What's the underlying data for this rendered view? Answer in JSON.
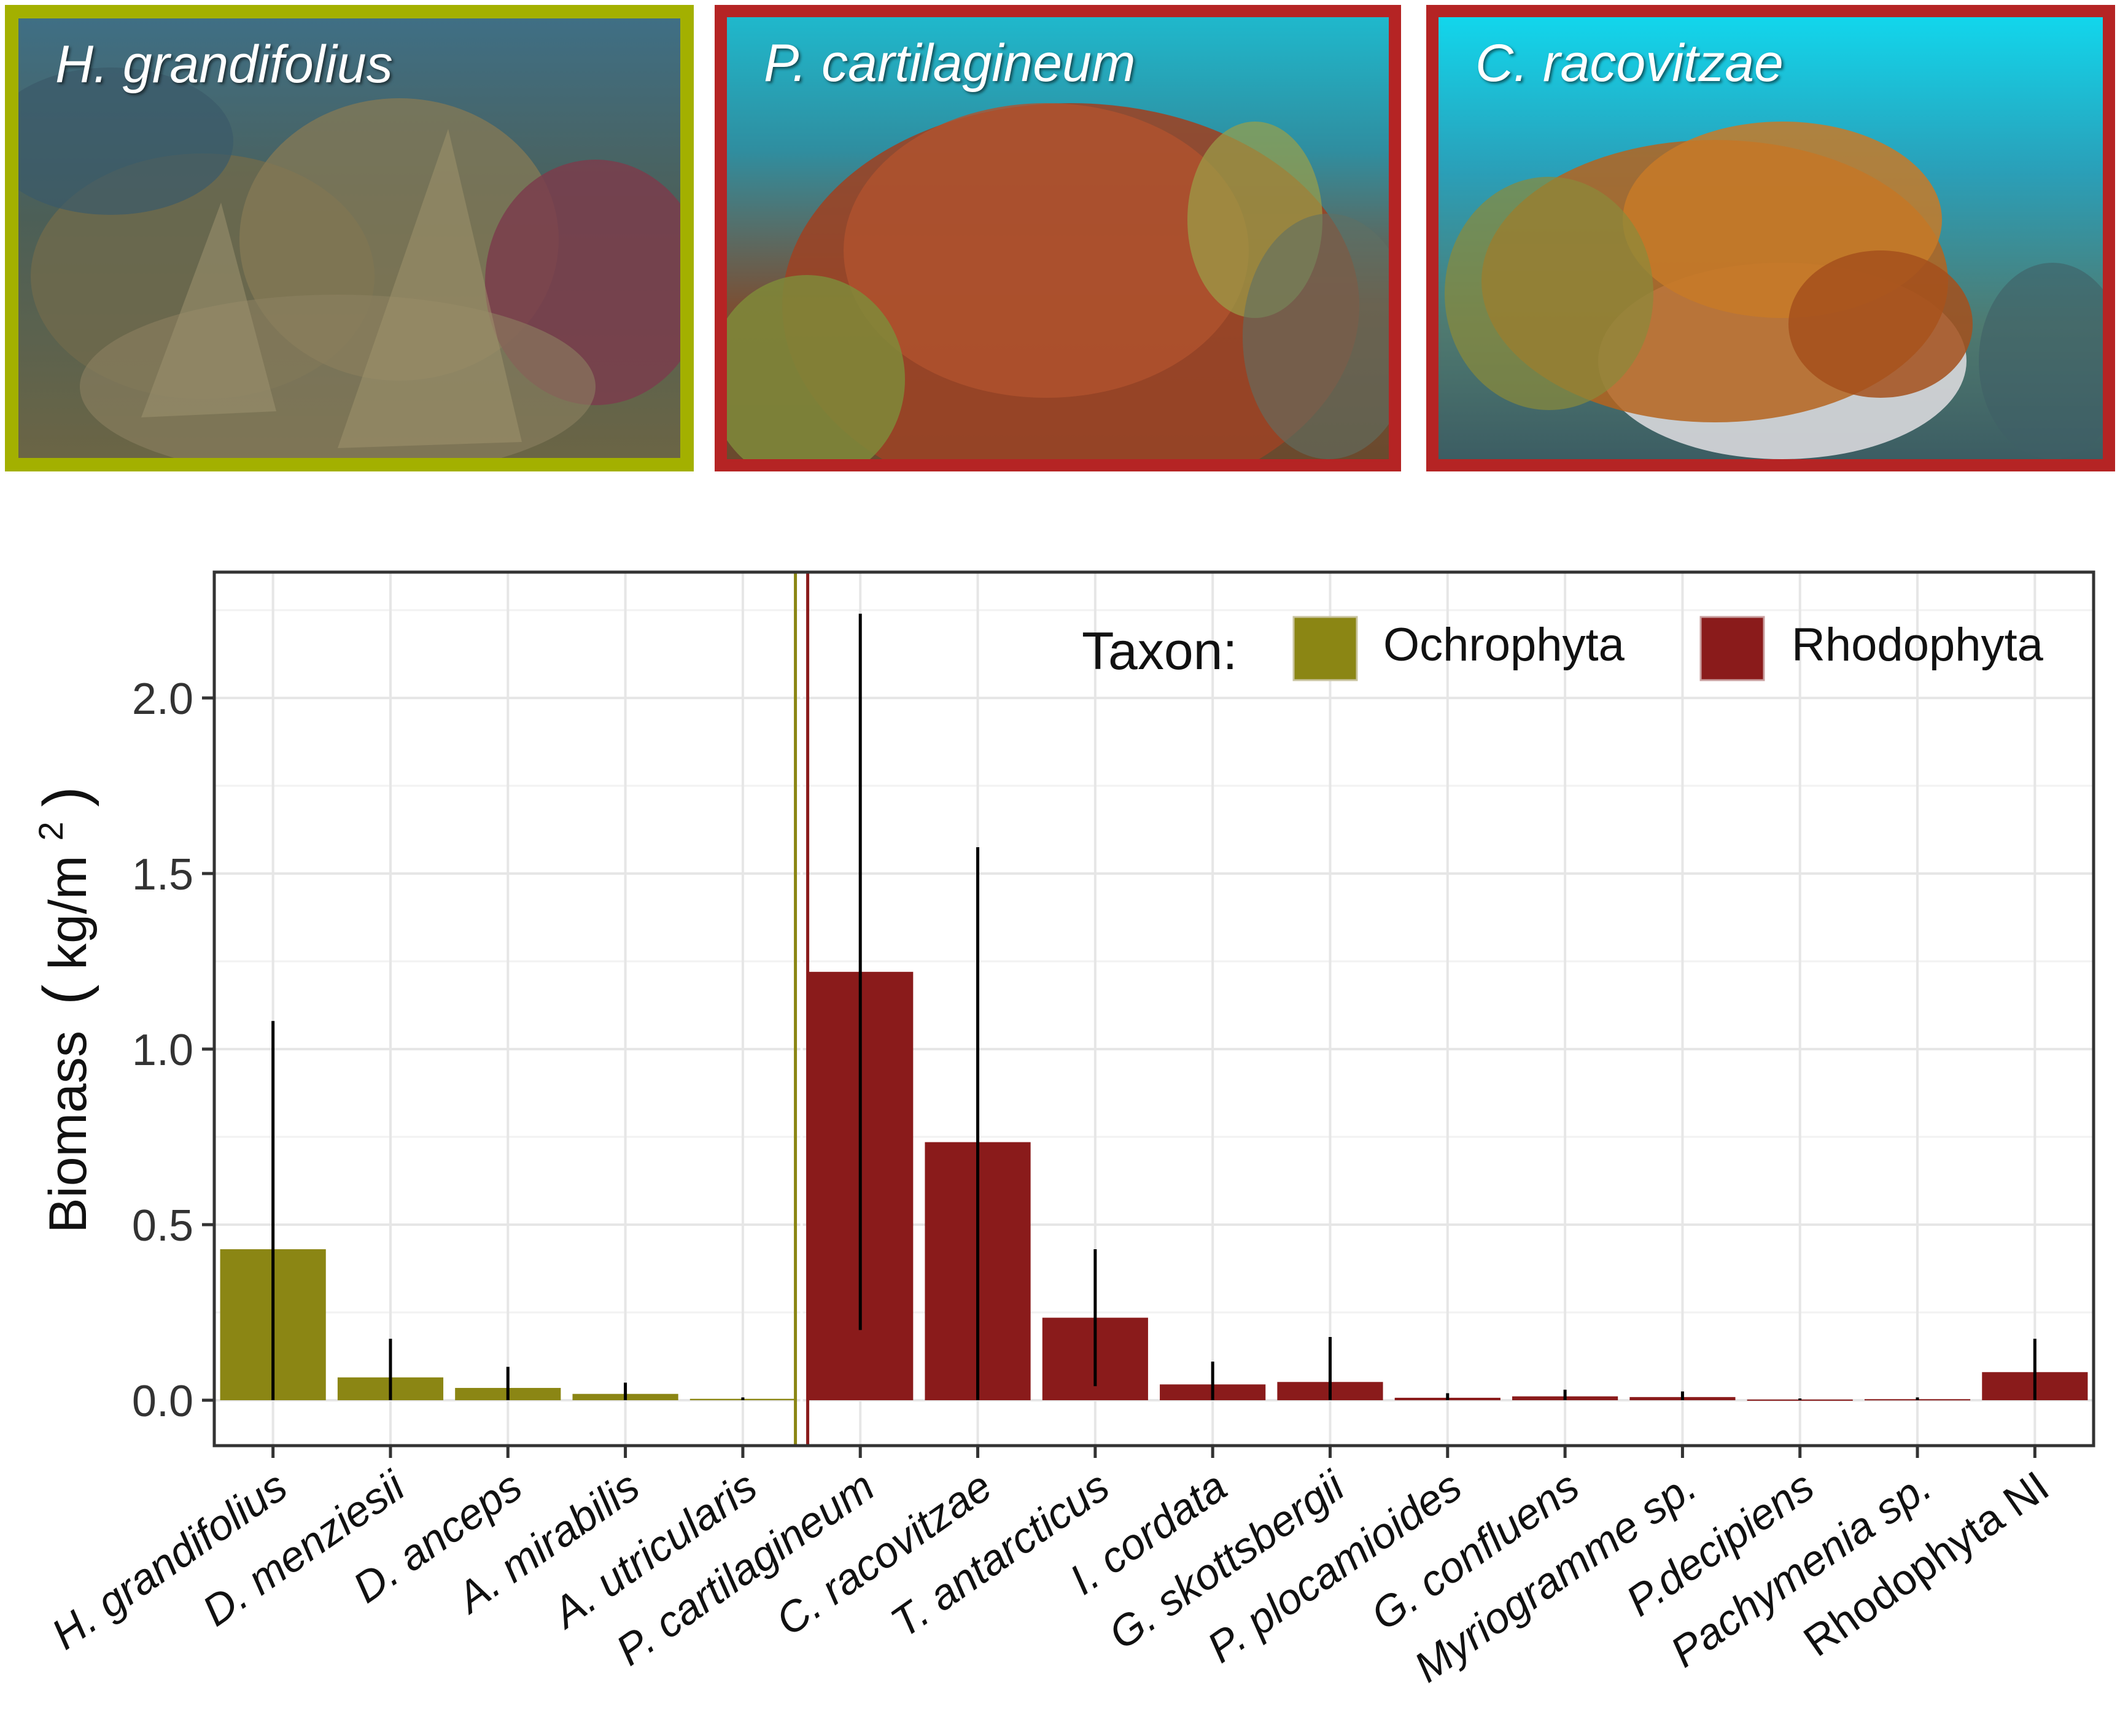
{
  "photos": [
    {
      "caption": "H. grandifolius",
      "frame_color": "#a3b000"
    },
    {
      "caption": "P. cartilagineum",
      "frame_color": "#b52424"
    },
    {
      "caption": "C. racovitzae",
      "frame_color": "#b52424"
    }
  ],
  "chart_data": {
    "type": "bar",
    "ylabel_main": "Biomass",
    "ylabel_unit": "kg/m",
    "ylabel_exponent": "2",
    "xlabel": "",
    "ylim": [
      -0.12,
      2.4
    ],
    "yticks": [
      0.0,
      0.5,
      1.0,
      1.5,
      2.0
    ],
    "ytick_labels": [
      "0.0",
      "0.5",
      "1.0",
      "1.5",
      "2.0"
    ],
    "grid": true,
    "legend": {
      "title": "Taxon:",
      "position": "top-right",
      "entries": [
        {
          "label": "Ochrophyta",
          "color": "#8b8614"
        },
        {
          "label": "Rhodophyta",
          "color": "#8a1b1b"
        }
      ]
    },
    "divider_between": [
      "A. utricularis",
      "P. cartilagineum"
    ],
    "categories": [
      "H. grandifolius",
      "D. menziesii",
      "D. anceps",
      "A. mirabilis",
      "A. utricularis",
      "P. cartilagineum",
      "C. racovitzae",
      "T. antarcticus",
      "I. cordata",
      "G. skottsbergii",
      "P. plocamioides",
      "G. confluens",
      "Myriogramme sp.",
      "P.decipiens",
      "Pachymenia sp.",
      "Rhodophyta NI"
    ],
    "taxon": [
      "Ochrophyta",
      "Ochrophyta",
      "Ochrophyta",
      "Ochrophyta",
      "Ochrophyta",
      "Rhodophyta",
      "Rhodophyta",
      "Rhodophyta",
      "Rhodophyta",
      "Rhodophyta",
      "Rhodophyta",
      "Rhodophyta",
      "Rhodophyta",
      "Rhodophyta",
      "Rhodophyta",
      "Rhodophyta"
    ],
    "values": [
      0.43,
      0.065,
      0.035,
      0.018,
      0.004,
      1.22,
      0.735,
      0.235,
      0.045,
      0.052,
      0.007,
      0.011,
      0.009,
      0.002,
      0.003,
      0.08
    ],
    "error_low": [
      0.0,
      0.0,
      0.0,
      0.0,
      0.0,
      0.2,
      0.0,
      0.04,
      0.0,
      0.0,
      0.0,
      0.0,
      0.0,
      0.0,
      0.0,
      0.0
    ],
    "error_high": [
      1.08,
      0.175,
      0.095,
      0.05,
      0.008,
      2.24,
      1.575,
      0.43,
      0.11,
      0.18,
      0.02,
      0.03,
      0.025,
      0.005,
      0.008,
      0.175
    ]
  }
}
